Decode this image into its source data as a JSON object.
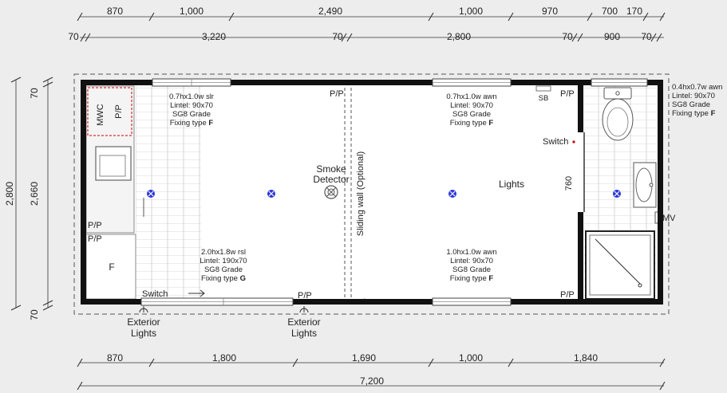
{
  "dimensions": {
    "top_row1": [
      "870",
      "1,000",
      "2,490",
      "1,000",
      "970",
      "700",
      "170"
    ],
    "top_row2": [
      "70",
      "3,220",
      "70",
      "2,800",
      "70",
      "900",
      "70"
    ],
    "bottom_row1": [
      "870",
      "1,800",
      "1,690",
      "1,000",
      "1,840"
    ],
    "bottom_total": "7,200",
    "left_outer": "2,800",
    "left_inner": "2,660",
    "left_top": "70",
    "left_bottom": "70"
  },
  "windows": [
    {
      "size": "0.7hx1.0w slr",
      "lintel": "Lintel: 90x70",
      "grade": "SG8 Grade",
      "fixing_prefix": "Fixing type ",
      "fixing_type": "F"
    },
    {
      "size": "0.7hx1.0w awn",
      "lintel": "Lintel: 90x70",
      "grade": "SG8 Grade",
      "fixing_prefix": "Fixing type ",
      "fixing_type": "F"
    },
    {
      "size": "0.4hx0.7w awn",
      "lintel": "Lintel: 90x70",
      "grade": "SG8 Grade",
      "fixing_prefix": "Fixing type ",
      "fixing_type": "F"
    },
    {
      "size": "2.0hx1.8w rsl",
      "lintel": "Lintel: 190x70",
      "grade": "SG8 Grade",
      "fixing_prefix": "Fixing type ",
      "fixing_type": "G"
    },
    {
      "size": "1.0hx1.0w awn",
      "lintel": "Lintel: 90x70",
      "grade": "SG8 Grade",
      "fixing_prefix": "Fixing type ",
      "fixing_type": "F"
    }
  ],
  "labels": {
    "mwc": "MWC",
    "pp": "P/P",
    "fridge": "F",
    "switch": "Switch",
    "smoke_line1": "Smoke",
    "smoke_line2": "Detector",
    "sliding_wall": "Sliding wall (Optional)",
    "lights": "Lights",
    "sb": "SB",
    "mv": "MV",
    "dim_760": "760",
    "exterior_line1": "Exterior",
    "exterior_line2": "Lights"
  }
}
